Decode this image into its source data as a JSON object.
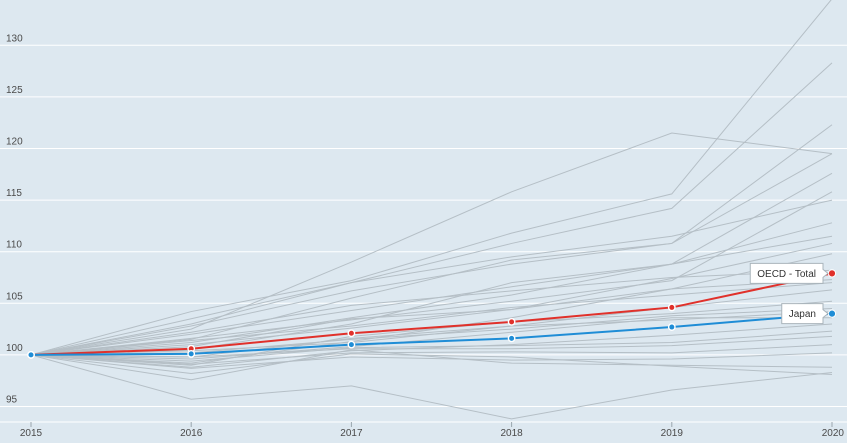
{
  "chart_data": {
    "type": "line",
    "x": [
      2015,
      2016,
      2017,
      2018,
      2019,
      2020
    ],
    "xticks": [
      "2015",
      "2016",
      "2017",
      "2018",
      "2019",
      "2020"
    ],
    "yticks": [
      "95",
      "100",
      "105",
      "110",
      "115",
      "120",
      "125",
      "130"
    ],
    "ylim": [
      93.5,
      134
    ],
    "grid": true,
    "highlighted": [
      {
        "name": "OECD - Total",
        "color": "#e0312b",
        "values": [
          100,
          100.6,
          102.1,
          103.2,
          104.6,
          107.9
        ]
      },
      {
        "name": "Japan",
        "color": "#1f8dd6",
        "values": [
          100,
          100.1,
          101.0,
          101.6,
          102.7,
          104.0
        ]
      }
    ],
    "background_color": "#b5bfc6",
    "background_series": [
      [
        100,
        102.5,
        109.0,
        115.8,
        121.5,
        119.5
      ],
      [
        100,
        104.2,
        107.2,
        111.8,
        115.6,
        134.5
      ],
      [
        100,
        103.0,
        107.0,
        110.8,
        114.2,
        128.3
      ],
      [
        100,
        101.5,
        105.5,
        109.2,
        110.8,
        122.3
      ],
      [
        100,
        102.8,
        106.2,
        108.8,
        110.8,
        119.5
      ],
      [
        100,
        103.5,
        107.0,
        109.5,
        111.5,
        115.0
      ],
      [
        100,
        100.5,
        103.0,
        107.0,
        108.8,
        117.6
      ],
      [
        100,
        102.0,
        104.3,
        106.6,
        108.8,
        112.8
      ],
      [
        100,
        101.2,
        103.6,
        105.8,
        108.8,
        111.5
      ],
      [
        100,
        101.0,
        102.6,
        104.4,
        107.4,
        110.8
      ],
      [
        100,
        101.6,
        103.4,
        105.2,
        107.2,
        115.8
      ],
      [
        100,
        99.2,
        101.3,
        103.6,
        106.4,
        109.8
      ],
      [
        100,
        100.8,
        103.5,
        104.4,
        106.4,
        107.3
      ],
      [
        100,
        100.4,
        101.2,
        102.8,
        104.6,
        106.3
      ],
      [
        100,
        99.0,
        101.8,
        103.2,
        104.0,
        105.2
      ],
      [
        100,
        100.2,
        101.5,
        102.5,
        103.8,
        104.5
      ],
      [
        100,
        99.6,
        100.8,
        102.2,
        103.6,
        103.6
      ],
      [
        100,
        98.8,
        100.4,
        101.0,
        101.9,
        103.0
      ],
      [
        100,
        99.4,
        100.7,
        100.9,
        101.2,
        102.3
      ],
      [
        100,
        99.8,
        100.6,
        100.6,
        100.9,
        101.8
      ],
      [
        100,
        99.1,
        100.2,
        100.3,
        100.2,
        101.0
      ],
      [
        100,
        98.7,
        99.8,
        99.5,
        99.6,
        100.2
      ],
      [
        100,
        97.6,
        100.5,
        99.2,
        99.0,
        98.8
      ],
      [
        100,
        95.7,
        97.0,
        93.8,
        96.6,
        98.3
      ],
      [
        100,
        99.8,
        101.6,
        102.8,
        103.4,
        104.2
      ],
      [
        100,
        98.2,
        100.1,
        99.8,
        98.9,
        98.1
      ],
      [
        100,
        102.2,
        104.8,
        106.2,
        107.5,
        108.2
      ],
      [
        100,
        101.4,
        102.8,
        104.6,
        105.8,
        107.0
      ]
    ]
  }
}
